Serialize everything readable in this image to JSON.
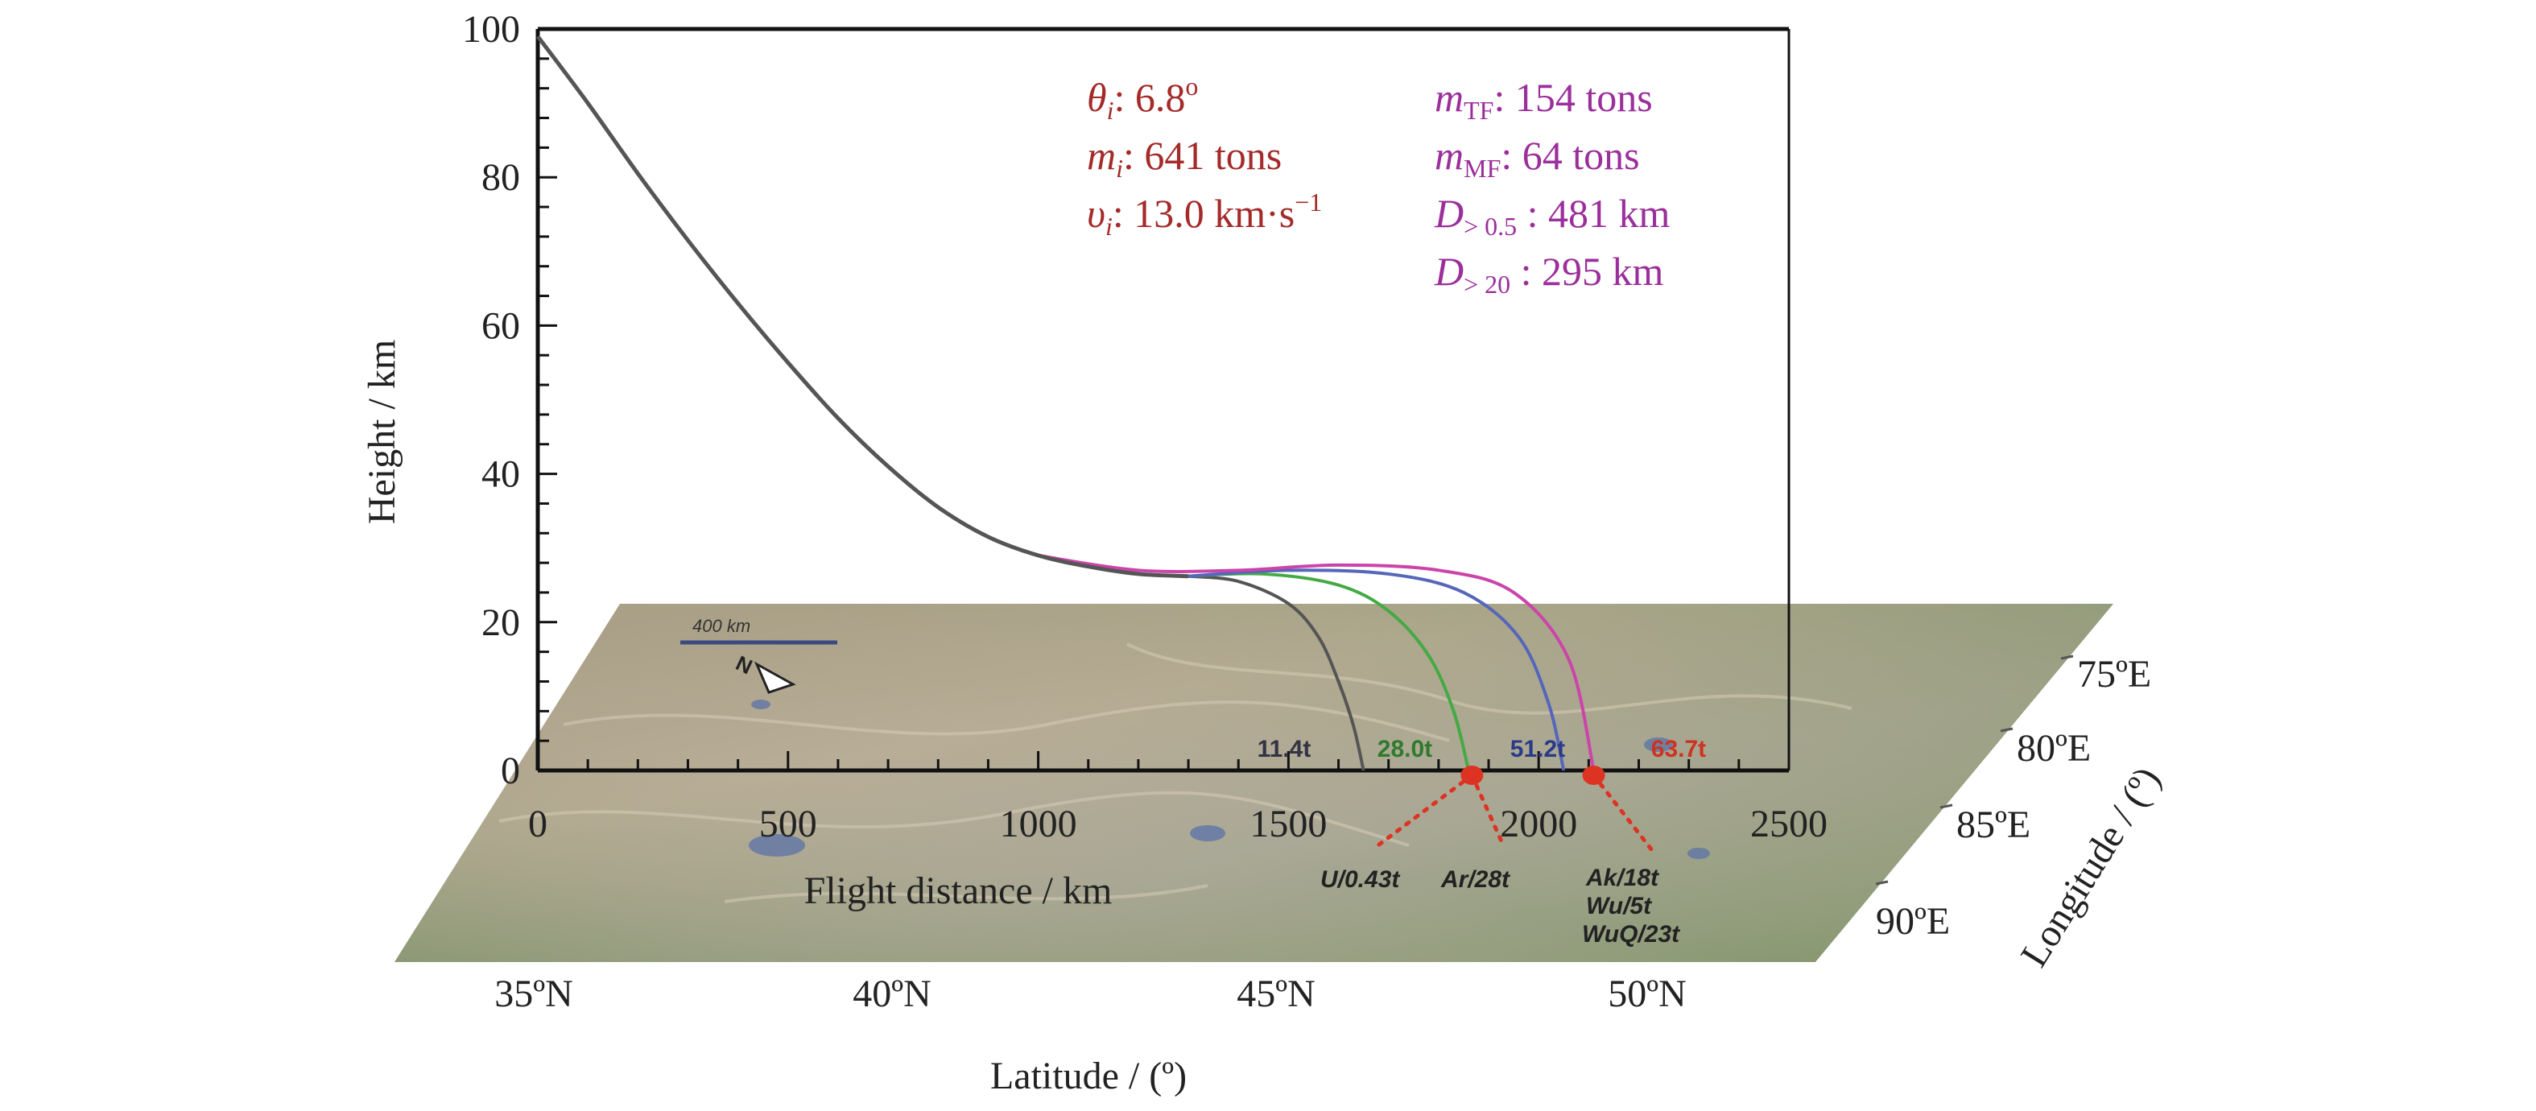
{
  "chart_data": {
    "type": "line",
    "xlabel": "Flight distance / km",
    "ylabel": "Height / km",
    "xlim": [
      0,
      2500
    ],
    "ylim": [
      0,
      100
    ],
    "x_ticks": [
      "0",
      "500",
      "1000",
      "1500",
      "2000",
      "2500"
    ],
    "y_ticks": [
      "0",
      "20",
      "40",
      "60",
      "80",
      "100"
    ],
    "main_trajectory": {
      "color": "#555555",
      "x": [
        0,
        100,
        200,
        300,
        400,
        500,
        600,
        700,
        800,
        900,
        1000,
        1100,
        1200,
        1300
      ],
      "y": [
        99,
        90,
        80.5,
        71.5,
        63,
        55,
        47.5,
        41,
        35.5,
        31.5,
        29,
        27.5,
        26.5,
        26.2
      ]
    },
    "series": [
      {
        "color": "#555555",
        "label": "11.4t",
        "x": [
          1300,
          1400,
          1500,
          1560,
          1600,
          1630,
          1650
        ],
        "y": [
          26.2,
          25.5,
          22.5,
          18,
          12,
          6,
          0
        ]
      },
      {
        "color": "#44aa44",
        "label": "28.0t",
        "x": [
          1300,
          1450,
          1600,
          1700,
          1780,
          1830,
          1860
        ],
        "y": [
          26.2,
          26.5,
          25,
          21.5,
          15.5,
          8,
          0
        ]
      },
      {
        "color": "#5566bb",
        "label": "51.2t",
        "x": [
          1300,
          1500,
          1700,
          1850,
          1960,
          2020,
          2050
        ],
        "y": [
          26.2,
          27,
          26.5,
          24,
          18,
          9,
          0
        ]
      },
      {
        "color": "#cc44aa",
        "label": "63.7t",
        "x": [
          1000,
          1200,
          1400,
          1600,
          1800,
          1950,
          2060,
          2110
        ],
        "y": [
          29,
          27,
          27,
          27.7,
          27,
          24,
          15,
          0
        ]
      }
    ],
    "impact_points": [
      {
        "x": 1870,
        "label": "Ar/28t"
      },
      {
        "x": 2110,
        "label": "Ak/18t\nWu/5t\nWuQ/23t"
      }
    ]
  },
  "parameters_left": [
    {
      "sym": "θ",
      "sub": "i",
      "text": ": 6.8",
      "sup": "o"
    },
    {
      "sym": "m",
      "sub": "i",
      "text": ": 641 tons",
      "sup": ""
    },
    {
      "sym": "υ",
      "sub": "i",
      "text": ": 13.0 km·s",
      "sup": "−1"
    }
  ],
  "parameters_right": [
    {
      "sym": "m",
      "sub": "TF",
      "text": ": 154 tons"
    },
    {
      "sym": "m",
      "sub": "MF",
      "text": ": 64 tons"
    },
    {
      "sym": "D",
      "sub": "> 0.5",
      "text": "  : 481 km"
    },
    {
      "sym": "D",
      "sub": "> 20",
      "text": " : 295 km"
    }
  ],
  "map": {
    "scale_label": "400 km",
    "north_label": "N",
    "fragment_labels": [
      "11.4t",
      "28.0t",
      "51.2t",
      "63.7t"
    ],
    "ground_labels": [
      "U/0.43t",
      "Ar/28t",
      "Ak/18t",
      "Wu/5t",
      "WuQ/23t"
    ],
    "latitude_ticks": [
      "35ºN",
      "40ºN",
      "45ºN",
      "50ºN"
    ],
    "latitude_title": "Latitude / (º)",
    "longitude_ticks": [
      "75ºE",
      "80ºE",
      "85ºE",
      "90ºE"
    ],
    "longitude_title": "Longitude / (º)"
  },
  "colors": {
    "param_left": "#a52a2a",
    "param_right": "#9b2f9b",
    "impact": "#dd3322"
  }
}
